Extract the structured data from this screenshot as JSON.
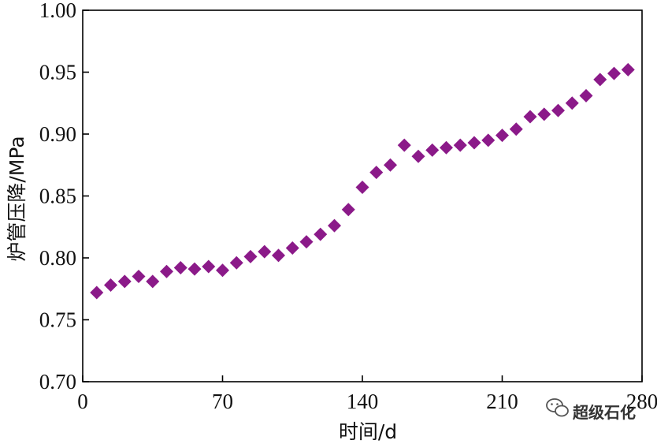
{
  "chart_data": {
    "type": "scatter",
    "xlabel": "时间/d",
    "ylabel": "炉管压降/MPa",
    "xlim": [
      0,
      280
    ],
    "ylim": [
      0.7,
      1.0
    ],
    "xticks": [
      "0",
      "70",
      "140",
      "210",
      "280"
    ],
    "yticks": [
      "0.70",
      "0.75",
      "0.80",
      "0.85",
      "0.90",
      "0.95",
      "1.00"
    ],
    "marker": "diamond",
    "marker_color": "#8B1A89",
    "grid": false,
    "series": [
      {
        "x": [
          7,
          14,
          21,
          28,
          35,
          42,
          49,
          56,
          63,
          70,
          77,
          84,
          91,
          98,
          105,
          112,
          119,
          126,
          133,
          140,
          147,
          154,
          161,
          168,
          175,
          182,
          189,
          196,
          203,
          210,
          217,
          224,
          231,
          238,
          245,
          252,
          259,
          266,
          273
        ],
        "values": [
          0.772,
          0.778,
          0.781,
          0.785,
          0.781,
          0.789,
          0.792,
          0.791,
          0.793,
          0.79,
          0.796,
          0.801,
          0.805,
          0.802,
          0.808,
          0.813,
          0.819,
          0.826,
          0.839,
          0.857,
          0.869,
          0.875,
          0.891,
          0.882,
          0.887,
          0.889,
          0.891,
          0.893,
          0.895,
          0.899,
          0.904,
          0.914,
          0.916,
          0.919,
          0.925,
          0.931,
          0.944,
          0.949,
          0.952
        ]
      }
    ]
  },
  "watermark": {
    "text": "超级石化",
    "icon": "wechat-icon"
  }
}
